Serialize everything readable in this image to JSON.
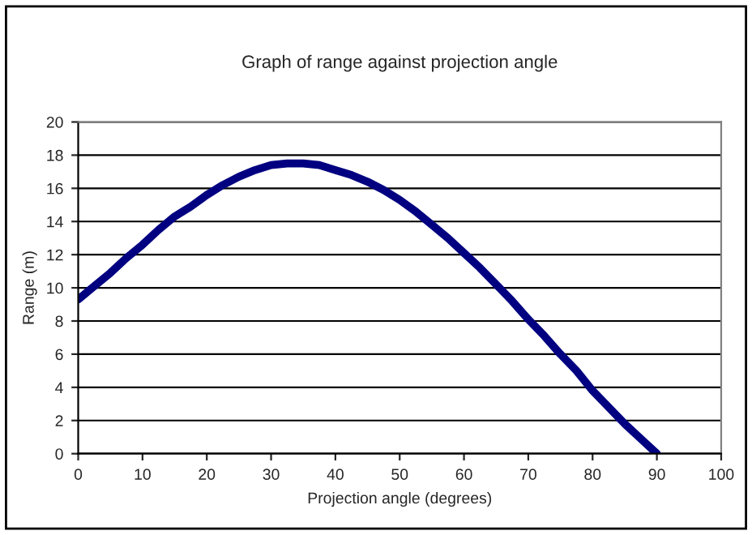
{
  "chart_data": {
    "type": "line",
    "title": "Graph of range against projection angle",
    "xlabel": "Projection angle (degrees)",
    "ylabel": "Range (m)",
    "x": [
      0,
      2.5,
      5,
      7.5,
      10,
      12.5,
      15,
      17.5,
      20,
      22.5,
      25,
      27.5,
      30,
      32.5,
      35,
      37.5,
      40,
      42.5,
      45,
      47.5,
      50,
      52.5,
      55,
      57.5,
      60,
      62.5,
      65,
      67.5,
      70,
      72.5,
      75,
      77.5,
      80,
      82.5,
      85,
      87.5,
      90
    ],
    "series": [
      {
        "color": "#000080",
        "values": [
          9.3,
          10.1,
          10.9,
          11.8,
          12.6,
          13.5,
          14.3,
          14.9,
          15.6,
          16.2,
          16.7,
          17.1,
          17.4,
          17.5,
          17.5,
          17.4,
          17.1,
          16.8,
          16.4,
          15.9,
          15.3,
          14.6,
          13.8,
          13.0,
          12.1,
          11.2,
          10.2,
          9.2,
          8.1,
          7.1,
          6.0,
          5.0,
          3.8,
          2.8,
          1.8,
          0.9,
          0
        ]
      }
    ],
    "xlim": [
      0,
      100
    ],
    "xticks": [
      0,
      10,
      20,
      30,
      40,
      50,
      60,
      70,
      80,
      90,
      100
    ],
    "ylim": [
      0,
      20
    ],
    "yticks": [
      0,
      2,
      4,
      6,
      8,
      10,
      12,
      14,
      16,
      18,
      20
    ],
    "grid": "y",
    "legend": false,
    "marker": "none",
    "line_style": "solid"
  }
}
